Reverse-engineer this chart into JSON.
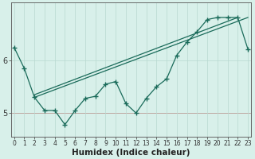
{
  "xlabel": "Humidex (Indice chaleur)",
  "bg_color": "#d8f0ea",
  "line_color": "#1a6b5a",
  "grid_color": "#b8d8d0",
  "series_zigzag": {
    "x": [
      0,
      1,
      2,
      3,
      4,
      5,
      6,
      7,
      8,
      9,
      10,
      11,
      12,
      13,
      14,
      15,
      16,
      17,
      18,
      19,
      20,
      21,
      22,
      23
    ],
    "y": [
      6.25,
      5.85,
      5.3,
      5.05,
      5.05,
      4.78,
      5.05,
      5.28,
      5.32,
      5.55,
      5.6,
      5.18,
      5.0,
      5.28,
      5.5,
      5.65,
      6.1,
      6.35,
      6.55,
      6.78,
      6.82,
      6.82,
      6.82,
      6.22
    ]
  },
  "series_line1": {
    "x": [
      0,
      2,
      10,
      18,
      22,
      23
    ],
    "y": [
      6.25,
      5.3,
      5.48,
      6.55,
      6.82,
      6.22
    ]
  },
  "series_line2": {
    "x": [
      2,
      10,
      18,
      23
    ],
    "y": [
      5.3,
      5.55,
      6.55,
      6.22
    ]
  },
  "series_straight1": {
    "x": [
      2,
      23
    ],
    "y": [
      5.3,
      6.82
    ]
  },
  "series_straight2": {
    "x": [
      2,
      22
    ],
    "y": [
      5.35,
      6.82
    ]
  },
  "yticks": [
    5,
    6
  ],
  "xticks": [
    0,
    1,
    2,
    3,
    4,
    5,
    6,
    7,
    8,
    9,
    10,
    11,
    12,
    13,
    14,
    15,
    16,
    17,
    18,
    19,
    20,
    21,
    22,
    23
  ],
  "ylim": [
    4.55,
    7.1
  ],
  "xlim": [
    -0.3,
    23.3
  ],
  "red_hline_y": 5.0,
  "xfont_size": 5.5,
  "yfont_size": 7,
  "xlabel_fontsize": 7.5
}
